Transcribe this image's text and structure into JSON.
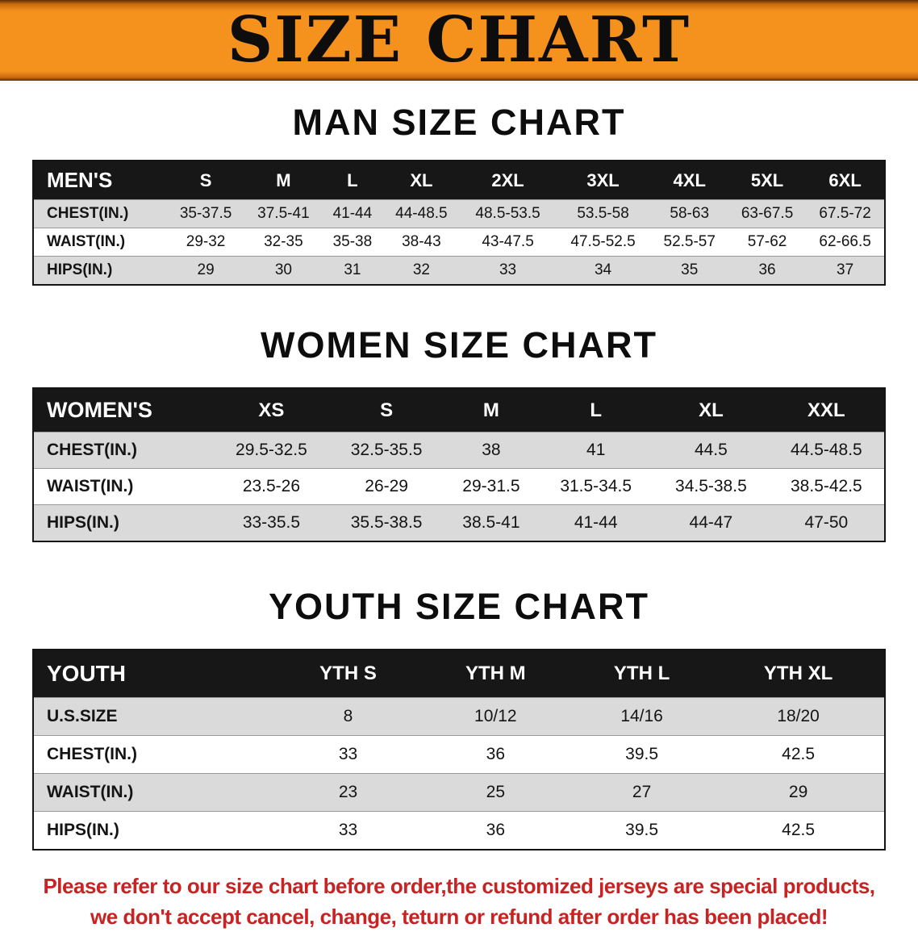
{
  "banner": {
    "title": "SIZE CHART"
  },
  "colors": {
    "banner_orange": "#f5921e",
    "table_header_black": "#171717",
    "row_gray": "#dadada",
    "footer_red": "#c92222"
  },
  "men": {
    "heading": "MAN SIZE CHART",
    "table": {
      "header": [
        "MEN'S",
        "S",
        "M",
        "L",
        "XL",
        "2XL",
        "3XL",
        "4XL",
        "5XL",
        "6XL"
      ],
      "rows": [
        {
          "label": "CHEST(IN.)",
          "values": [
            "35-37.5",
            "37.5-41",
            "41-44",
            "44-48.5",
            "48.5-53.5",
            "53.5-58",
            "58-63",
            "63-67.5",
            "67.5-72"
          ]
        },
        {
          "label": "WAIST(IN.)",
          "values": [
            "29-32",
            "32-35",
            "35-38",
            "38-43",
            "43-47.5",
            "47.5-52.5",
            "52.5-57",
            "57-62",
            "62-66.5"
          ]
        },
        {
          "label": "HIPS(IN.)",
          "values": [
            "29",
            "30",
            "31",
            "32",
            "33",
            "34",
            "35",
            "36",
            "37"
          ]
        }
      ]
    }
  },
  "women": {
    "heading": "WOMEN SIZE CHART",
    "table": {
      "header": [
        "WOMEN'S",
        "XS",
        "S",
        "M",
        "L",
        "XL",
        "XXL"
      ],
      "rows": [
        {
          "label": "CHEST(IN.)",
          "values": [
            "29.5-32.5",
            "32.5-35.5",
            "38",
            "41",
            "44.5",
            "44.5-48.5"
          ]
        },
        {
          "label": "WAIST(IN.)",
          "values": [
            "23.5-26",
            "26-29",
            "29-31.5",
            "31.5-34.5",
            "34.5-38.5",
            "38.5-42.5"
          ]
        },
        {
          "label": "HIPS(IN.)",
          "values": [
            "33-35.5",
            "35.5-38.5",
            "38.5-41",
            "41-44",
            "44-47",
            "47-50"
          ]
        }
      ]
    }
  },
  "youth": {
    "heading": "YOUTH SIZE CHART",
    "table": {
      "header": [
        "YOUTH",
        "YTH S",
        "YTH M",
        "YTH L",
        "YTH XL"
      ],
      "rows": [
        {
          "label": "U.S.SIZE",
          "values": [
            "8",
            "10/12",
            "14/16",
            "18/20"
          ]
        },
        {
          "label": "CHEST(IN.)",
          "values": [
            "33",
            "36",
            "39.5",
            "42.5"
          ]
        },
        {
          "label": "WAIST(IN.)",
          "values": [
            "23",
            "25",
            "27",
            "29"
          ]
        },
        {
          "label": "HIPS(IN.)",
          "values": [
            "33",
            "36",
            "39.5",
            "42.5"
          ]
        }
      ]
    }
  },
  "footer": {
    "line1": "Please refer to our size chart before order,the customized jerseys are special products,",
    "line2": "we don't accept cancel, change, teturn or refund after order has been placed!"
  }
}
